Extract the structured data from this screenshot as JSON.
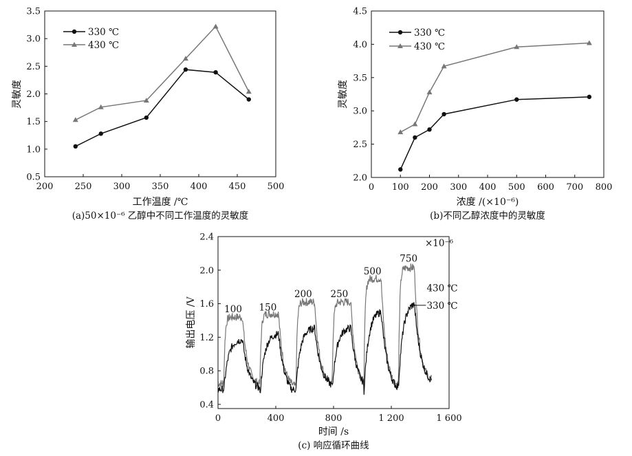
{
  "colors": {
    "black": "#111111",
    "gray": "#777777"
  },
  "chart_data": [
    {
      "type": "line",
      "caption": "(a)50×10⁻⁶ 乙醇中不同工作温度的灵敏度",
      "xlabel": "工作温度 /℃",
      "ylabel": "灵敏度",
      "xlim": [
        200,
        500
      ],
      "ylim": [
        0.5,
        3.5
      ],
      "xticks": [
        200,
        250,
        300,
        350,
        400,
        450,
        500
      ],
      "yticks": [
        0.5,
        1.0,
        1.5,
        2.0,
        2.5,
        3.0,
        3.5
      ],
      "xtick_labels": [
        "200",
        "250",
        "300",
        "350",
        "400",
        "450",
        "500"
      ],
      "ytick_labels": [
        "0.5",
        "1.0",
        "1.5",
        "2.0",
        "2.5",
        "3.0",
        "3.5"
      ],
      "legend_position": "top-left",
      "series": [
        {
          "name": "330 ℃",
          "marker": "circle",
          "color": "#111111",
          "x": [
            240,
            273,
            332,
            383,
            422,
            465
          ],
          "y": [
            1.05,
            1.28,
            1.57,
            2.44,
            2.39,
            1.9
          ]
        },
        {
          "name": "430 ℃",
          "marker": "triangle",
          "color": "#777777",
          "x": [
            240,
            273,
            332,
            383,
            422,
            465
          ],
          "y": [
            1.53,
            1.76,
            1.88,
            2.64,
            3.22,
            2.04
          ]
        }
      ]
    },
    {
      "type": "line",
      "caption": "(b)不同乙醇浓度中的灵敏度",
      "xlabel": "浓度 /(×10⁻⁶)",
      "ylabel": "灵敏度",
      "xlim": [
        0,
        800
      ],
      "ylim": [
        2.0,
        4.5
      ],
      "xticks": [
        0,
        100,
        200,
        300,
        400,
        500,
        600,
        700,
        800
      ],
      "yticks": [
        2.0,
        2.5,
        3.0,
        3.5,
        4.0,
        4.5
      ],
      "xtick_labels": [
        "0",
        "100",
        "200",
        "300",
        "400",
        "500",
        "600",
        "700",
        "800"
      ],
      "ytick_labels": [
        "2.0",
        "2.5",
        "3.0",
        "3.5",
        "4.0",
        "4.5"
      ],
      "legend_position": "top-left",
      "series": [
        {
          "name": "330 ℃",
          "marker": "circle",
          "color": "#111111",
          "x": [
            100,
            150,
            200,
            250,
            500,
            750
          ],
          "y": [
            2.12,
            2.6,
            2.72,
            2.95,
            3.17,
            3.21
          ]
        },
        {
          "name": "430 ℃",
          "marker": "triangle",
          "color": "#777777",
          "x": [
            100,
            150,
            200,
            250,
            500,
            750
          ],
          "y": [
            2.68,
            2.8,
            3.28,
            3.67,
            3.96,
            4.02
          ]
        }
      ]
    },
    {
      "type": "line",
      "caption": "(c) 响应循环曲线",
      "xlabel": "时间 /s",
      "ylabel": "输出电压 /V",
      "xlim": [
        0,
        1600
      ],
      "ylim": [
        0.35,
        2.4
      ],
      "xticks": [
        0,
        400,
        800,
        1200,
        1600
      ],
      "yticks": [
        0.4,
        0.8,
        1.2,
        1.6,
        2.0,
        2.4
      ],
      "xtick_labels": [
        "0",
        "400",
        "800",
        "1 200",
        "1 600"
      ],
      "ytick_labels": [
        "0.4",
        "0.8",
        "1.2",
        "1.6",
        "2.0",
        "2.4"
      ],
      "unit_note": "×10⁻⁶",
      "pulse_labels": [
        {
          "text": "100",
          "x": 105,
          "y": 1.5
        },
        {
          "text": "150",
          "x": 345,
          "y": 1.52
        },
        {
          "text": "200",
          "x": 590,
          "y": 1.68
        },
        {
          "text": "250",
          "x": 840,
          "y": 1.68
        },
        {
          "text": "500",
          "x": 1070,
          "y": 1.95
        },
        {
          "text": "750",
          "x": 1320,
          "y": 2.1
        }
      ],
      "series": [
        {
          "name": "430 ℃",
          "color": "#777777",
          "baseline": [
            0.62,
            0.58,
            0.62,
            0.58,
            0.58,
            0.65
          ],
          "peak": [
            1.44,
            1.48,
            1.62,
            1.62,
            1.9,
            2.03
          ],
          "label_pos": {
            "x": 1445,
            "y": 1.75
          }
        },
        {
          "name": "330 ℃",
          "color": "#111111",
          "baseline": [
            0.55,
            0.48,
            0.58,
            0.55,
            0.52,
            0.62
          ],
          "peak": [
            1.18,
            1.25,
            1.32,
            1.32,
            1.52,
            1.62
          ],
          "label_pos": {
            "x": 1445,
            "y": 1.54
          }
        }
      ],
      "pulse_on_s": [
        40,
        290,
        540,
        790,
        1010,
        1250
      ],
      "pulse_off_s": [
        170,
        420,
        670,
        920,
        1130,
        1360
      ],
      "end_s": 1480
    }
  ]
}
